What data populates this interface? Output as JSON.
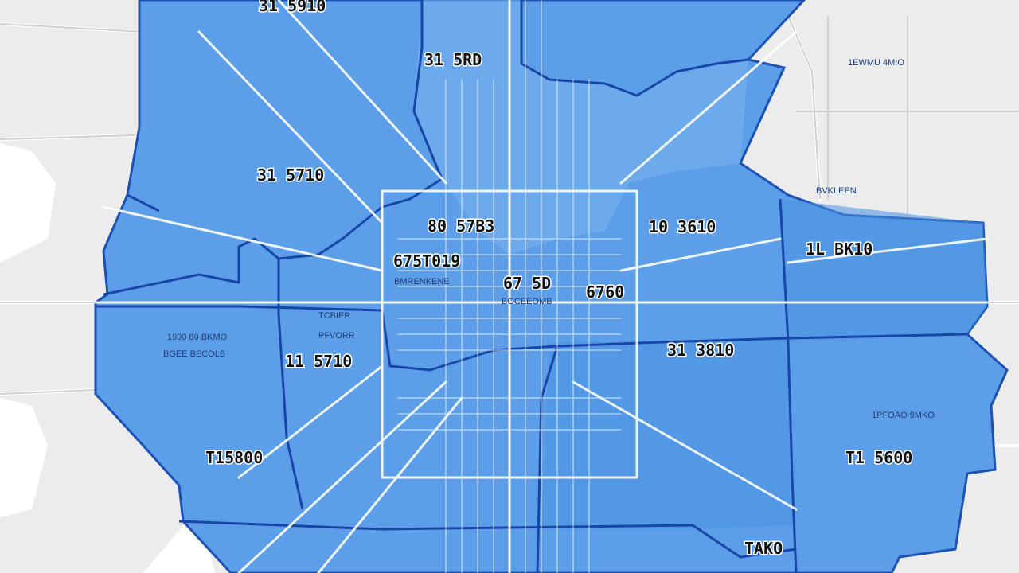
{
  "map": {
    "district_labels": [
      "31 5910",
      "31 5RD",
      "31 5710",
      "80 57B3",
      "10 3610",
      "675T019",
      "67 5D",
      "6760",
      "1L BK10",
      "11 5710",
      "31 3810",
      "T15800",
      "T1 5600",
      "TAKO"
    ],
    "street_labels": [
      "1990 80 BKMO",
      "BGEE BECOLB",
      "TCBIER",
      "PFVORR",
      "BMRENKENE",
      "1EWMU 4MIO",
      "BVKLEEN",
      "1PFOAO 9MKO",
      "BOCEEOMB"
    ]
  }
}
